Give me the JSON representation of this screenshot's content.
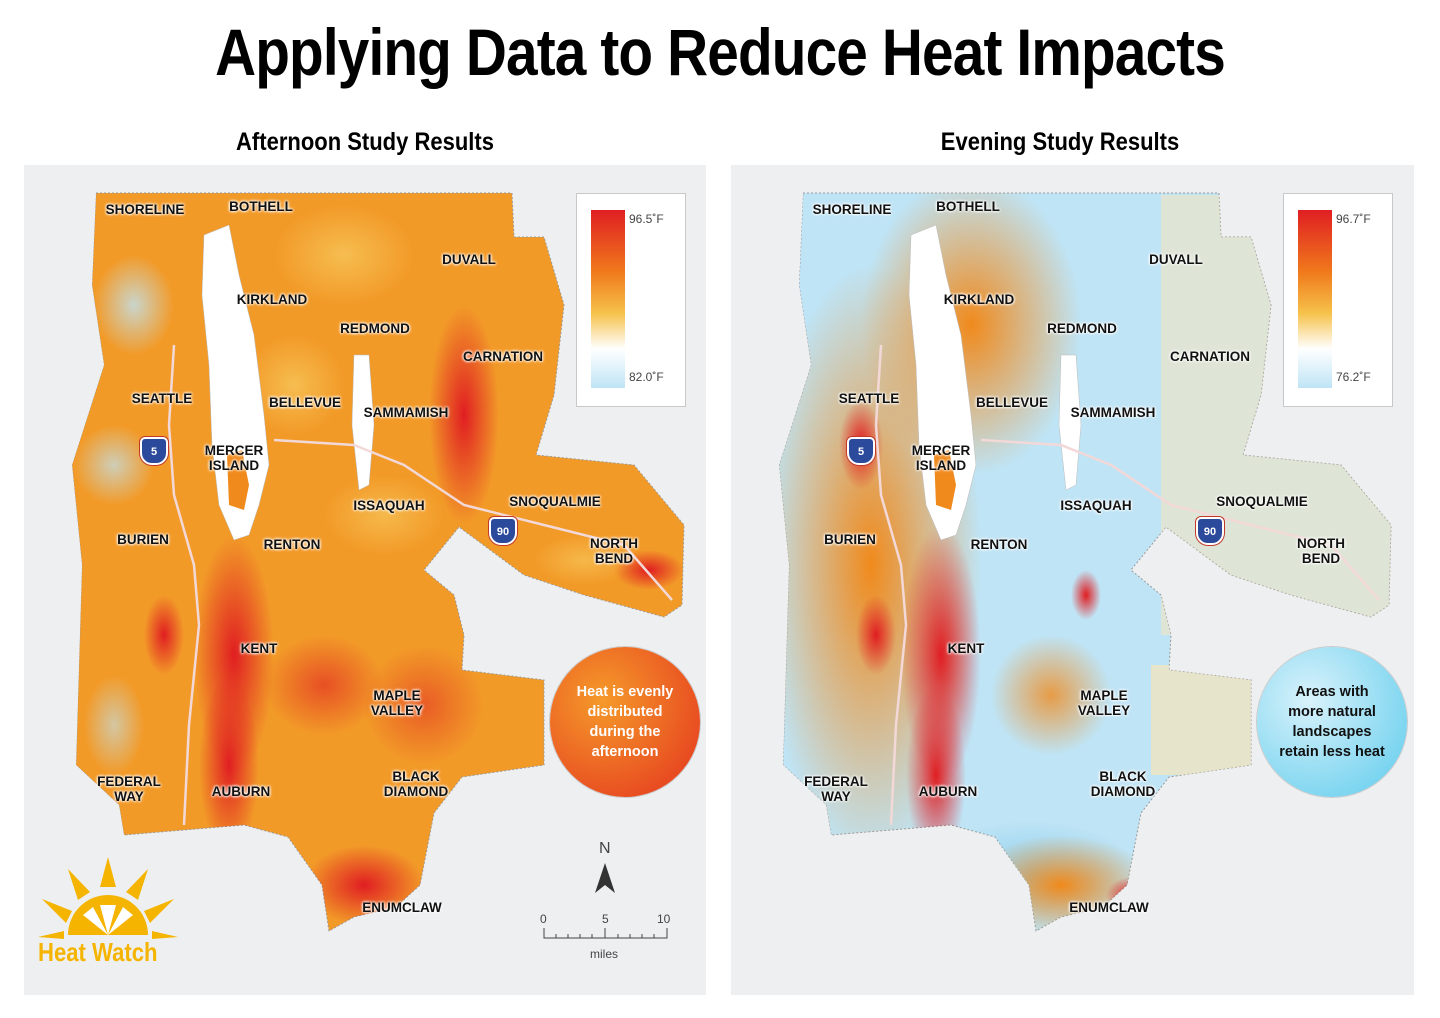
{
  "title": "Applying Data to Reduce Heat Impacts",
  "panels": {
    "afternoon": {
      "title": "Afternoon Study Results",
      "legend_max": "96.5˚F",
      "legend_min": "82.0˚F",
      "callout": "Heat is evenly distributed during the afternoon",
      "callout_color": "#e8501a"
    },
    "evening": {
      "title": "Evening Study Results",
      "legend_max": "96.7˚F",
      "legend_min": "76.2˚F",
      "callout": "Areas with more natural landscapes retain less heat",
      "callout_color": "#6fd0ec"
    }
  },
  "cities": {
    "shoreline": "SHORELINE",
    "bothell": "BOTHELL",
    "duvall": "DUVALL",
    "kirkland": "KIRKLAND",
    "redmond": "REDMOND",
    "carnation": "CARNATION",
    "seattle": "SEATTLE",
    "bellevue": "BELLEVUE",
    "sammamish": "SAMMAMISH",
    "mercer_island": "MERCER\nISLAND",
    "issaquah": "ISSAQUAH",
    "snoqualmie": "SNOQUALMIE",
    "burien": "BURIEN",
    "renton": "RENTON",
    "north_bend": "NORTH\nBEND",
    "kent": "KENT",
    "maple_valley": "MAPLE\nVALLEY",
    "federal_way": "FEDERAL\nWAY",
    "auburn": "AUBURN",
    "black_diamond": "BLACK\nDIAMOND",
    "enumclaw": "ENUMCLAW"
  },
  "highways": {
    "i5": "5",
    "i90": "90"
  },
  "scale_bar": {
    "ticks": [
      "0",
      "5",
      "10"
    ],
    "unit": "miles"
  },
  "north_arrow": "N",
  "logo": {
    "text": "Heat Watch",
    "icon": "sun-icon",
    "color": "#f5b400"
  },
  "colors": {
    "hot": "#e02a26",
    "warm": "#f08a1c",
    "mild": "#f6c24a",
    "neutral": "#ffffff",
    "cool": "#a9dcf2",
    "water": "#ffffff"
  }
}
